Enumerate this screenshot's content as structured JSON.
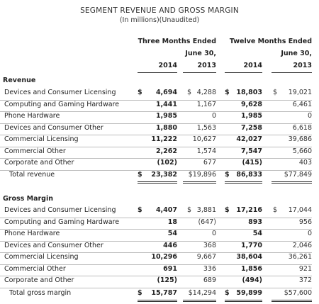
{
  "title": "SEGMENT REVENUE AND GROSS MARGIN",
  "subtitle": "(In millions)(Unaudited)",
  "headers": {
    "three_months_line1": "Three Months Ended",
    "three_months_line2": "June 30,",
    "twelve_months_line1": "Twelve Months Ended",
    "twelve_months_line2": "June 30,",
    "year_2014": "2014",
    "year_2013": "2013"
  },
  "revenue": {
    "heading": "Revenue",
    "rows": [
      {
        "label": "Devices and Consumer Licensing",
        "q2014": "4,694",
        "q2013": "4,288",
        "y2014": "18,803",
        "y2013": "19,021",
        "dollar": true
      },
      {
        "label": "Computing and Gaming Hardware",
        "q2014": "1,441",
        "q2013": "1,167",
        "y2014": "9,628",
        "y2013": "6,461"
      },
      {
        "label": "Phone Hardware",
        "q2014": "1,985",
        "q2013": "0",
        "y2014": "1,985",
        "y2013": "0"
      },
      {
        "label": "Devices and Consumer Other",
        "q2014": "1,880",
        "q2013": "1,563",
        "y2014": "7,258",
        "y2013": "6,618"
      },
      {
        "label": "Commercial Licensing",
        "q2014": "11,222",
        "q2013": "10,627",
        "y2014": "42,027",
        "y2013": "39,686"
      },
      {
        "label": "Commercial Other",
        "q2014": "2,262",
        "q2013": "1,574",
        "y2014": "7,547",
        "y2013": "5,660"
      },
      {
        "label": "Corporate and Other",
        "q2014": "(102)",
        "q2013": "677",
        "y2014": "(415)",
        "y2013": "403"
      }
    ],
    "total": {
      "label": "Total revenue",
      "q2014": "23,382",
      "q2013": "$19,896",
      "y2014": "86,833",
      "y2013": "$77,849"
    }
  },
  "gross_margin": {
    "heading": "Gross Margin",
    "rows": [
      {
        "label": "Devices and Consumer Licensing",
        "q2014": "4,407",
        "q2013": "3,881",
        "y2014": "17,216",
        "y2013": "17,044",
        "dollar": true
      },
      {
        "label": "Computing and Gaming Hardware",
        "q2014": "18",
        "q2013": "(647)",
        "y2014": "893",
        "y2013": "956"
      },
      {
        "label": "Phone Hardware",
        "q2014": "54",
        "q2013": "0",
        "y2014": "54",
        "y2013": "0"
      },
      {
        "label": "Devices and Consumer Other",
        "q2014": "446",
        "q2013": "368",
        "y2014": "1,770",
        "y2013": "2,046"
      },
      {
        "label": "Commercial Licensing",
        "q2014": "10,296",
        "q2013": "9,667",
        "y2014": "38,604",
        "y2013": "36,261"
      },
      {
        "label": "Commercial Other",
        "q2014": "691",
        "q2013": "336",
        "y2014": "1,856",
        "y2013": "921"
      },
      {
        "label": "Corporate and Other",
        "q2014": "(125)",
        "q2013": "689",
        "y2014": "(494)",
        "y2013": "372"
      }
    ],
    "total": {
      "label": "Total gross margin",
      "q2014": "15,787",
      "q2013": "$14,294",
      "y2014": "59,899",
      "y2013": "$57,600"
    }
  },
  "symbols": {
    "dollar": "$"
  }
}
